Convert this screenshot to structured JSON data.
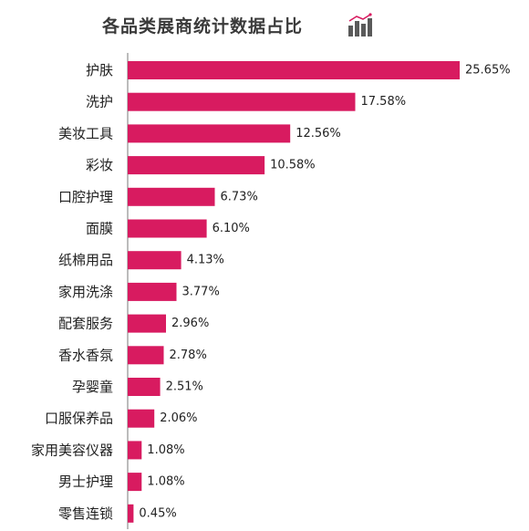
{
  "colors": {
    "bar": "#d81b60",
    "axis": "#7a7a7a",
    "icon": "#5a5a5a",
    "icon_accent": "#d81b60"
  },
  "chart_data": {
    "type": "bar",
    "orientation": "horizontal",
    "title": "各品类展商统计数据占比",
    "xlabel": "",
    "ylabel": "",
    "xlim": [
      0,
      25.65
    ],
    "grid": false,
    "legend": "none",
    "categories": [
      "护肤",
      "洗护",
      "美妆工具",
      "彩妆",
      "口腔护理",
      "面膜",
      "纸棉用品",
      "家用洗涤",
      "配套服务",
      "香水香氛",
      "孕婴童",
      "口服保养品",
      "家用美容仪器",
      "男士护理",
      "零售连锁"
    ],
    "values": [
      25.65,
      17.58,
      12.56,
      10.58,
      6.73,
      6.1,
      4.13,
      3.77,
      2.96,
      2.78,
      2.51,
      2.06,
      1.08,
      1.08,
      0.45
    ],
    "value_labels": [
      "25.65%",
      "17.58%",
      "12.56%",
      "10.58%",
      "6.73%",
      "6.10%",
      "4.13%",
      "3.77%",
      "2.96%",
      "2.78%",
      "2.51%",
      "2.06%",
      "1.08%",
      "1.08%",
      "0.45%"
    ]
  }
}
